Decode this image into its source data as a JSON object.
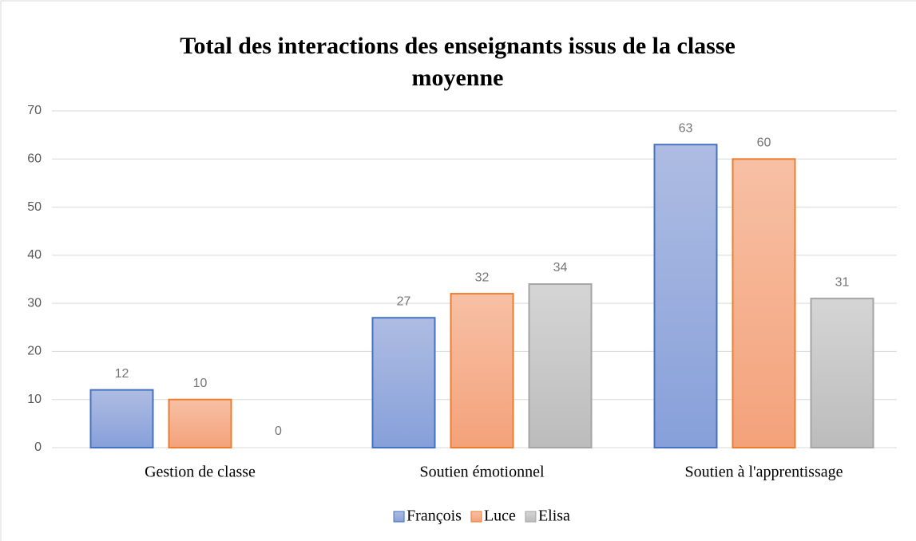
{
  "chart_data": {
    "type": "bar",
    "title": "Total des interactions des enseignants issus de la classe moyenne",
    "categories": [
      "Gestion de classe",
      "Soutien émotionnel",
      "Soutien à l'apprentissage"
    ],
    "series": [
      {
        "name": "François",
        "color": "#4472c4",
        "values": [
          12,
          27,
          63
        ]
      },
      {
        "name": "Luce",
        "color": "#ed7d31",
        "values": [
          10,
          32,
          60
        ]
      },
      {
        "name": "Elisa",
        "color": "#a5a5a5",
        "values": [
          0,
          34,
          31
        ]
      }
    ],
    "ylim": [
      0,
      70
    ],
    "yticks": [
      0,
      10,
      20,
      30,
      40,
      50,
      60,
      70
    ],
    "grid": true,
    "legend": "bottom"
  }
}
